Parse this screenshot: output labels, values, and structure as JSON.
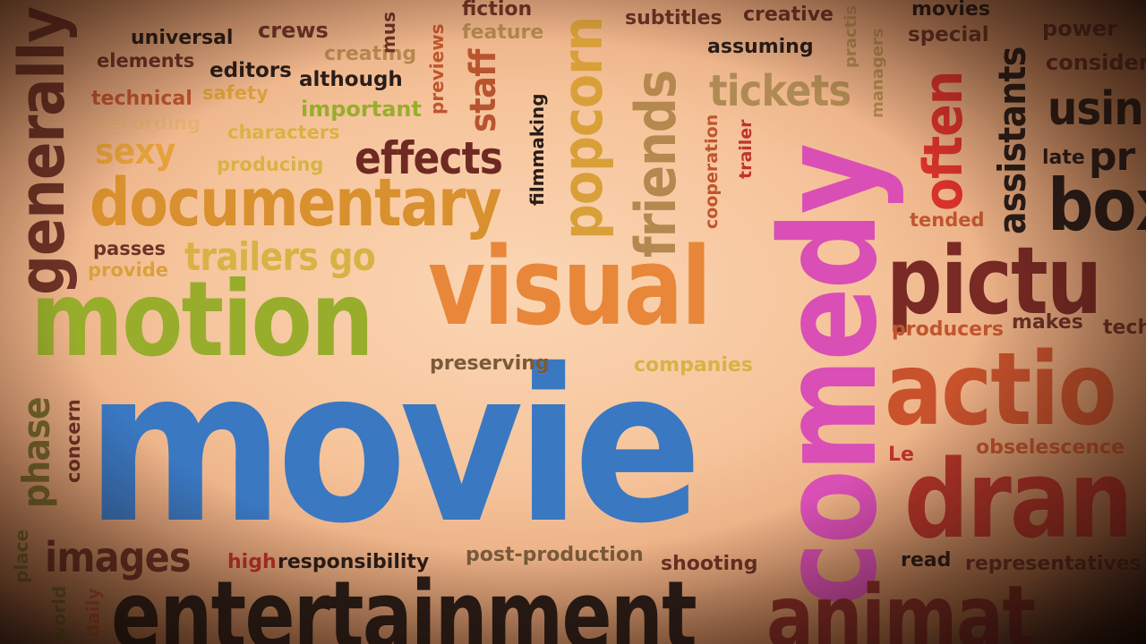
{
  "words": {
    "movie": "movie",
    "comedy": "comedy",
    "visual": "visual",
    "motion": "motion",
    "entertainment": "entertainment",
    "documentary": "documentary",
    "action": "actio",
    "drama": "dran",
    "picture": "pictu",
    "animation": "animat",
    "box": "box",
    "generally": "generally",
    "popcorn": "popcorn",
    "friends": "friends",
    "often": "often",
    "assistants": "assistants",
    "effects": "effects",
    "tickets": "tickets",
    "images": "images",
    "phase": "phase",
    "staff": "staff",
    "trailers_go": "trailers go",
    "sexy": "sexy",
    "using": "usin",
    "pr": "pr",
    "late": "late",
    "universal": "universal",
    "elements": "elements",
    "crews": "crews",
    "creating": "creating",
    "editors": "editors",
    "although": "although",
    "technical": "technical",
    "safety": "safety",
    "important": "important",
    "recording": "recording",
    "characters": "characters",
    "producing": "producing",
    "fiction": "fiction",
    "feature": "feature",
    "subtitles": "subtitles",
    "creative": "creative",
    "assuming": "assuming",
    "movies": "movies",
    "special": "special",
    "power": "power",
    "consider": "consider",
    "managers": "managers",
    "practis": "practis",
    "previews": "previews",
    "filmmaking": "filmmaking",
    "cooperation": "cooperation",
    "trailer": "trailer",
    "tended": "tended",
    "passes": "passes",
    "provide": "provide",
    "preserving": "preserving",
    "companies": "companies",
    "producers": "producers",
    "makes": "makes",
    "tech": "tech",
    "obselescence": "obselescence",
    "le": "Le",
    "concern": "concern",
    "place": "place",
    "world": "world",
    "daily": "daily",
    "high": "high",
    "responsibility": "responsibility",
    "post_production": "post-production",
    "shooting": "shooting",
    "read": "read",
    "representatives": "representatives",
    "mus": "mus"
  },
  "colors": {
    "blue": "#3a78c2",
    "magenta": "#d94fb5",
    "orange": "#e8873a",
    "olive": "#98ad2c",
    "dark": "#2a1d18",
    "red": "#c0332a",
    "brown": "#7a3326",
    "gold": "#d9a03a",
    "tan": "#b4884e"
  }
}
